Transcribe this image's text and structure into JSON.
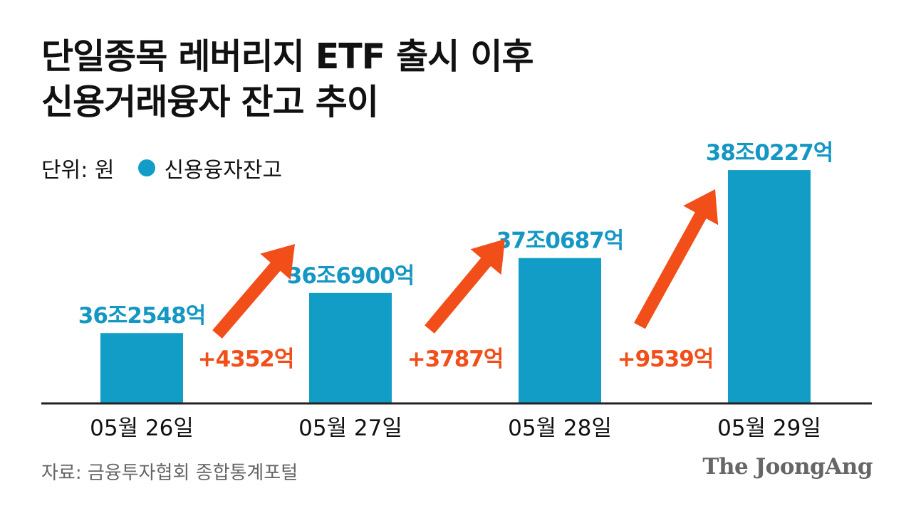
{
  "title_lines": [
    "단일종목 레버리지 ETF 출시 이후",
    "신용거래융자 잔고 추이"
  ],
  "unit_label": "단위: 원",
  "source": "자료: 금융투자협회 종합통계포털",
  "brand": "The JoongAng",
  "colors": {
    "bar": "#129dc7",
    "bar_label": "#1497c3",
    "change": "#f24e1a",
    "axis": "#222222"
  },
  "chart_data": {
    "type": "bar",
    "categories": [
      "05월 26일",
      "05월 27일",
      "05월 28일",
      "05월 29일"
    ],
    "series": [
      {
        "name": "신용융자잔고",
        "values": [
          362548,
          366900,
          370687,
          380227
        ]
      }
    ],
    "value_unit": "억 원",
    "data_labels": [
      "36조2548억",
      "36조6900억",
      "37조0687억",
      "38조0227억"
    ],
    "changes": [
      {
        "from": "05월 26일",
        "to": "05월 27일",
        "value": 4352,
        "label": "+4352억"
      },
      {
        "from": "05월 27일",
        "to": "05월 28일",
        "value": 3787,
        "label": "+3787억"
      },
      {
        "from": "05월 28일",
        "to": "05월 29일",
        "value": 9539,
        "label": "+9539억"
      }
    ],
    "ylim": [
      355000,
      381700
    ],
    "legend": "top-left",
    "grid": false
  }
}
